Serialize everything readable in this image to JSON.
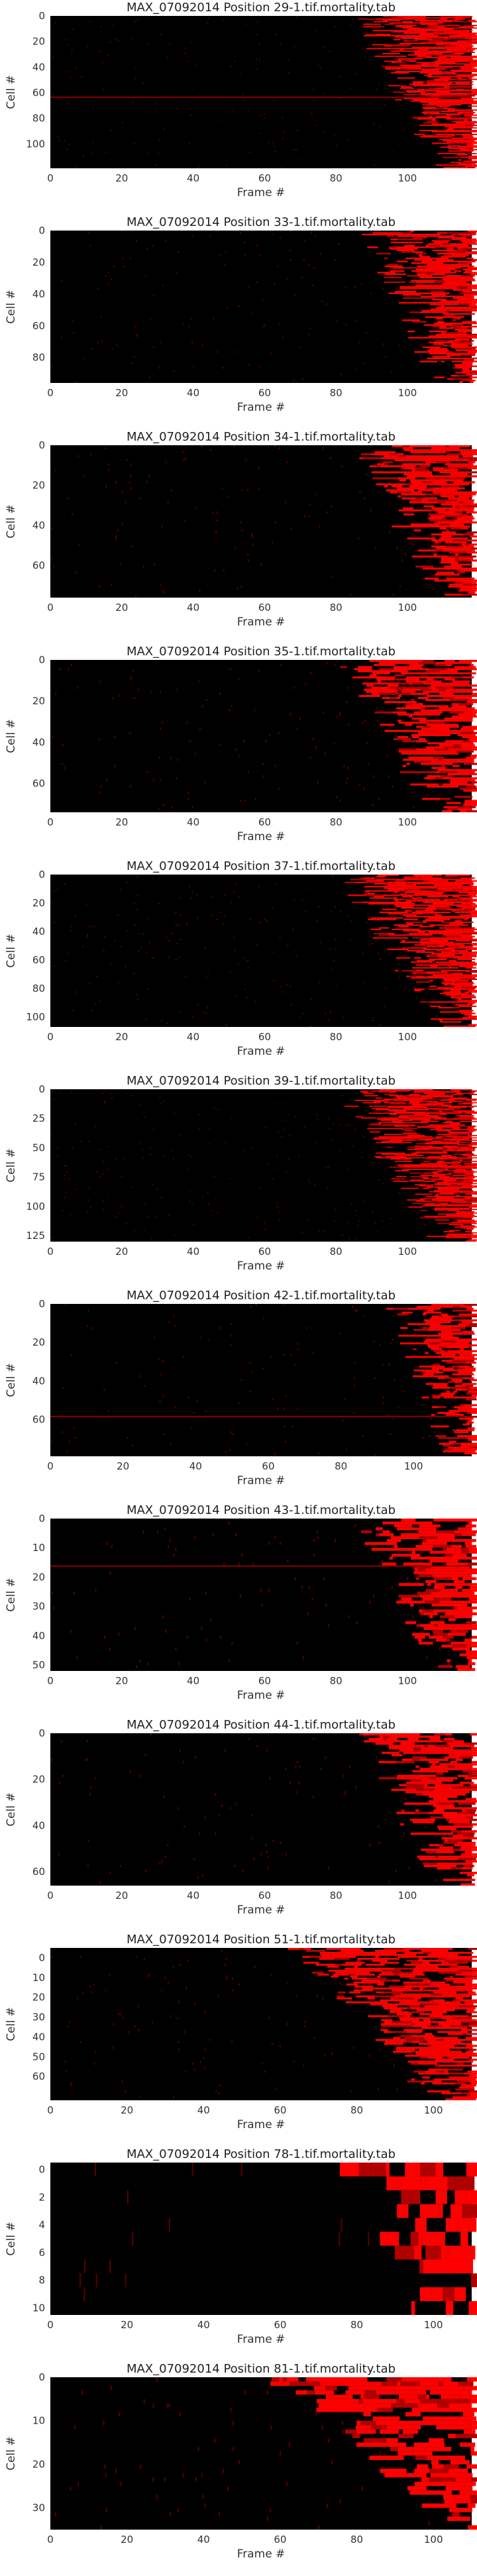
{
  "chart_data": [
    {
      "type": "heatmap",
      "title": "MAX_07092014 Position 29-1.tif.mortality.tab",
      "xlabel": "Frame #",
      "ylabel": "Cell #",
      "xlim": [
        0,
        118
      ],
      "ylim": [
        119,
        0
      ],
      "xticks": [
        0,
        20,
        40,
        60,
        80,
        100
      ],
      "yticks": [
        0,
        20,
        40,
        60,
        80,
        100
      ],
      "colormap": [
        "#000000",
        "#ff0000"
      ],
      "onset_frame_range": [
        86,
        114
      ],
      "stripe_rows": [
        63
      ]
    },
    {
      "type": "heatmap",
      "title": "MAX_07092014 Position 33-1.tif.mortality.tab",
      "xlabel": "Frame #",
      "ylabel": "Cell #",
      "xlim": [
        0,
        118
      ],
      "ylim": [
        96,
        0
      ],
      "xticks": [
        0,
        20,
        40,
        60,
        80,
        100
      ],
      "yticks": [
        0,
        20,
        40,
        60,
        80
      ],
      "colormap": [
        "#000000",
        "#ff0000"
      ],
      "onset_frame_range": [
        90,
        112
      ],
      "stripe_rows": []
    },
    {
      "type": "heatmap",
      "title": "MAX_07092014 Position 34-1.tif.mortality.tab",
      "xlabel": "Frame #",
      "ylabel": "Cell #",
      "xlim": [
        0,
        118
      ],
      "ylim": [
        76,
        0
      ],
      "xticks": [
        0,
        20,
        40,
        60,
        80,
        100
      ],
      "yticks": [
        0,
        20,
        40,
        60
      ],
      "colormap": [
        "#000000",
        "#ff0000"
      ],
      "onset_frame_range": [
        88,
        112
      ],
      "stripe_rows": []
    },
    {
      "type": "heatmap",
      "title": "MAX_07092014 Position 35-1.tif.mortality.tab",
      "xlabel": "Frame #",
      "ylabel": "Cell #",
      "xlim": [
        0,
        118
      ],
      "ylim": [
        74,
        0
      ],
      "xticks": [
        0,
        20,
        40,
        60,
        80,
        100
      ],
      "yticks": [
        0,
        20,
        40,
        60
      ],
      "colormap": [
        "#000000",
        "#ff0000"
      ],
      "onset_frame_range": [
        80,
        112
      ],
      "stripe_rows": []
    },
    {
      "type": "heatmap",
      "title": "MAX_07092014 Position 37-1.tif.mortality.tab",
      "xlabel": "Frame #",
      "ylabel": "Cell #",
      "xlim": [
        0,
        118
      ],
      "ylim": [
        107,
        0
      ],
      "xticks": [
        0,
        20,
        40,
        60,
        80,
        100
      ],
      "yticks": [
        0,
        20,
        40,
        60,
        80,
        100
      ],
      "colormap": [
        "#000000",
        "#ff0000"
      ],
      "onset_frame_range": [
        82,
        112
      ],
      "stripe_rows": []
    },
    {
      "type": "heatmap",
      "title": "MAX_07092014 Position 39-1.tif.mortality.tab",
      "xlabel": "Frame #",
      "ylabel": "Cell #",
      "xlim": [
        0,
        118
      ],
      "ylim": [
        130,
        0
      ],
      "xticks": [
        0,
        20,
        40,
        60,
        80,
        100
      ],
      "yticks": [
        0,
        25,
        50,
        75,
        100,
        125
      ],
      "colormap": [
        "#000000",
        "#ff0000"
      ],
      "onset_frame_range": [
        82,
        112
      ],
      "stripe_rows": []
    },
    {
      "type": "heatmap",
      "title": "MAX_07092014 Position 42-1.tif.mortality.tab",
      "xlabel": "Frame #",
      "ylabel": "Cell #",
      "xlim": [
        0,
        116
      ],
      "ylim": [
        79,
        0
      ],
      "xticks": [
        0,
        20,
        40,
        60,
        80,
        100
      ],
      "yticks": [
        0,
        20,
        40,
        60
      ],
      "colormap": [
        "#000000",
        "#ff0000"
      ],
      "onset_frame_range": [
        96,
        114
      ],
      "stripe_rows": [
        58
      ]
    },
    {
      "type": "heatmap",
      "title": "MAX_07092014 Position 43-1.tif.mortality.tab",
      "xlabel": "Frame #",
      "ylabel": "Cell #",
      "xlim": [
        0,
        118
      ],
      "ylim": [
        52,
        0
      ],
      "xticks": [
        0,
        20,
        40,
        60,
        80,
        100
      ],
      "yticks": [
        0,
        10,
        20,
        30,
        40,
        50
      ],
      "colormap": [
        "#000000",
        "#ff0000"
      ],
      "onset_frame_range": [
        88,
        112
      ],
      "stripe_rows": [
        16
      ]
    },
    {
      "type": "heatmap",
      "title": "MAX_07092014 Position 44-1.tif.mortality.tab",
      "xlabel": "Frame #",
      "ylabel": "Cell #",
      "xlim": [
        0,
        118
      ],
      "ylim": [
        66,
        0
      ],
      "xticks": [
        0,
        20,
        40,
        60,
        80,
        100
      ],
      "yticks": [
        0,
        20,
        40,
        60
      ],
      "colormap": [
        "#000000",
        "#ff0000"
      ],
      "onset_frame_range": [
        90,
        112
      ],
      "stripe_rows": []
    },
    {
      "type": "heatmap",
      "title": "MAX_07092014 Position 51-1.tif.mortality.tab",
      "xlabel": "Frame #",
      "ylabel": "Cell #",
      "xlim": [
        0,
        110
      ],
      "ylim": [
        72,
        -5
      ],
      "xticks": [
        0,
        20,
        40,
        60,
        80,
        100
      ],
      "yticks": [
        0,
        10,
        20,
        30,
        40,
        50,
        60
      ],
      "colormap": [
        "#000000",
        "#ff0000"
      ],
      "onset_frame_range": [
        62,
        104
      ],
      "stripe_rows": []
    },
    {
      "type": "heatmap",
      "title": "MAX_07092014 Position 78-1.tif.mortality.tab",
      "xlabel": "Frame #",
      "ylabel": "Cell #",
      "xlim": [
        0,
        110
      ],
      "ylim": [
        10.5,
        -0.5
      ],
      "xticks": [
        0,
        20,
        40,
        60,
        80,
        100
      ],
      "yticks": [
        0,
        2,
        4,
        6,
        8,
        10
      ],
      "colormap": [
        "#000000",
        "#ff0000"
      ],
      "onset_frame_range": [
        78,
        100
      ],
      "stripe_rows": []
    },
    {
      "type": "heatmap",
      "title": "MAX_07092014 Position 81-1.tif.mortality.tab",
      "xlabel": "Frame #",
      "ylabel": "Cell #",
      "xlim": [
        0,
        110
      ],
      "ylim": [
        35,
        0
      ],
      "xticks": [
        0,
        20,
        40,
        60,
        80,
        100
      ],
      "yticks": [
        0,
        10,
        20,
        30
      ],
      "colormap": [
        "#000000",
        "#ff0000"
      ],
      "onset_frame_range": [
        55,
        108
      ],
      "stripe_rows": []
    }
  ]
}
